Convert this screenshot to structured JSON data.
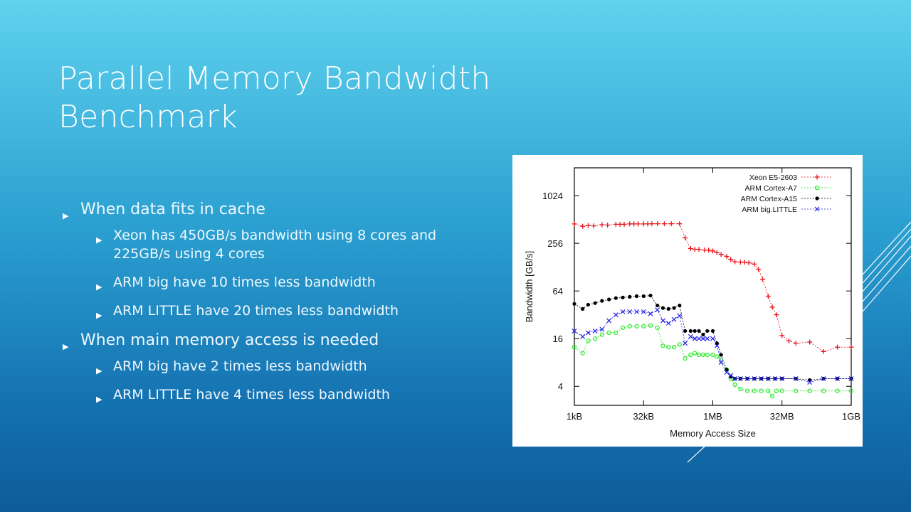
{
  "slide": {
    "title_line1": "Parallel Memory Bandwidth",
    "title_line2": "Benchmark",
    "bullets": [
      {
        "text": "When data fits in cache",
        "sub": [
          "Xeon has 450GB/s bandwidth using 8 cores and 225GB/s using 4 cores",
          "ARM big have 10 times less bandwidth",
          "ARM LITTLE have 20 times less bandwidth"
        ]
      },
      {
        "text": "When main memory access is needed",
        "sub": [
          "ARM big have 2 times less bandwidth",
          "ARM LITTLE have 4 times less bandwidth"
        ]
      }
    ],
    "colors": {
      "bullet_arrow": "#ffffff",
      "text": "#eef8ff"
    }
  },
  "chart_data": {
    "type": "line",
    "xlabel": "Memory Access Size",
    "ylabel": "Bandwidth [GB/s]",
    "x_scale": "log2",
    "y_scale": "log2",
    "xlim_log2": [
      10,
      30
    ],
    "ylim": [
      2.3,
      2300
    ],
    "xticks": [
      {
        "label": "1kB",
        "v": 10
      },
      {
        "label": "32kB",
        "v": 15
      },
      {
        "label": "1MB",
        "v": 20
      },
      {
        "label": "32MB",
        "v": 25
      },
      {
        "label": "1GB",
        "v": 30
      }
    ],
    "yticks": [
      4,
      16,
      64,
      256,
      1024
    ],
    "legend_position": "top-right",
    "series": [
      {
        "name": "Xeon E5-2603",
        "color": "#e8141b",
        "marker": "+",
        "points": [
          [
            10,
            450
          ],
          [
            10.6,
            420
          ],
          [
            11,
            430
          ],
          [
            11.4,
            425
          ],
          [
            12,
            440
          ],
          [
            12.4,
            435
          ],
          [
            13,
            445
          ],
          [
            13.3,
            445
          ],
          [
            13.6,
            445
          ],
          [
            14,
            450
          ],
          [
            14.3,
            450
          ],
          [
            14.6,
            450
          ],
          [
            15,
            450
          ],
          [
            15.3,
            450
          ],
          [
            15.6,
            452
          ],
          [
            16,
            452
          ],
          [
            16.5,
            452
          ],
          [
            17,
            452
          ],
          [
            17.6,
            452
          ],
          [
            18,
            300
          ],
          [
            18.4,
            220
          ],
          [
            18.7,
            215
          ],
          [
            19,
            215
          ],
          [
            19.4,
            210
          ],
          [
            19.7,
            210
          ],
          [
            20,
            205
          ],
          [
            20.3,
            195
          ],
          [
            20.6,
            185
          ],
          [
            21,
            175
          ],
          [
            21.3,
            160
          ],
          [
            21.6,
            150
          ],
          [
            22,
            148
          ],
          [
            22.3,
            148
          ],
          [
            22.6,
            145
          ],
          [
            23,
            140
          ],
          [
            23.3,
            120
          ],
          [
            23.6,
            90
          ],
          [
            24,
            55
          ],
          [
            24.3,
            40
          ],
          [
            24.6,
            32
          ],
          [
            25,
            17.5
          ],
          [
            25.5,
            15
          ],
          [
            26,
            14
          ],
          [
            27,
            14.5
          ],
          [
            28,
            11
          ],
          [
            29,
            12.5
          ],
          [
            30,
            12.5
          ]
        ]
      },
      {
        "name": "ARM Cortex-A7",
        "color": "#1ee81e",
        "marker": "o",
        "points": [
          [
            10,
            12.5
          ],
          [
            10.6,
            10.5
          ],
          [
            11,
            15
          ],
          [
            11.5,
            16
          ],
          [
            12,
            18
          ],
          [
            12.5,
            19
          ],
          [
            13,
            19
          ],
          [
            13.5,
            22
          ],
          [
            14,
            23
          ],
          [
            14.5,
            23
          ],
          [
            15,
            23
          ],
          [
            15.5,
            23.5
          ],
          [
            16,
            22
          ],
          [
            16.4,
            13
          ],
          [
            16.8,
            12.5
          ],
          [
            17.2,
            12.5
          ],
          [
            17.6,
            13.5
          ],
          [
            18,
            9
          ],
          [
            18.4,
            10
          ],
          [
            18.7,
            10.5
          ],
          [
            19,
            10
          ],
          [
            19.3,
            10
          ],
          [
            19.6,
            10
          ],
          [
            20,
            10
          ],
          [
            20.3,
            9.5
          ],
          [
            20.6,
            8.5
          ],
          [
            21,
            6.5
          ],
          [
            21.3,
            5
          ],
          [
            21.6,
            4.2
          ],
          [
            22,
            3.7
          ],
          [
            22.5,
            3.5
          ],
          [
            23,
            3.5
          ],
          [
            23.5,
            3.5
          ],
          [
            24,
            3.5
          ],
          [
            24.3,
            3
          ],
          [
            24.6,
            3.5
          ],
          [
            25,
            3.5
          ],
          [
            26,
            3.5
          ],
          [
            27,
            3.5
          ],
          [
            28,
            3.5
          ],
          [
            29,
            3.5
          ],
          [
            30,
            3.5
          ]
        ]
      },
      {
        "name": "ARM Cortex-A15",
        "color": "#000000",
        "marker": "dot",
        "points": [
          [
            10,
            44
          ],
          [
            10.6,
            38
          ],
          [
            11,
            43
          ],
          [
            11.5,
            45
          ],
          [
            12,
            48
          ],
          [
            12.5,
            50
          ],
          [
            13,
            52
          ],
          [
            13.5,
            53
          ],
          [
            14,
            54
          ],
          [
            14.5,
            55
          ],
          [
            15,
            55
          ],
          [
            15.5,
            56
          ],
          [
            16,
            42
          ],
          [
            16.4,
            39
          ],
          [
            16.8,
            38
          ],
          [
            17.2,
            39
          ],
          [
            17.6,
            42
          ],
          [
            18,
            20
          ],
          [
            18.4,
            20
          ],
          [
            18.7,
            20
          ],
          [
            19,
            20
          ],
          [
            19.3,
            18
          ],
          [
            19.6,
            20
          ],
          [
            20,
            20
          ],
          [
            20.3,
            14
          ],
          [
            20.6,
            10
          ],
          [
            21,
            6.5
          ],
          [
            21.3,
            5.3
          ],
          [
            21.6,
            5
          ],
          [
            22,
            5
          ],
          [
            22.5,
            5
          ],
          [
            23,
            5
          ],
          [
            23.5,
            5
          ],
          [
            24,
            5
          ],
          [
            24.5,
            5
          ],
          [
            25,
            5
          ],
          [
            26,
            5
          ],
          [
            27,
            4.8
          ],
          [
            28,
            5
          ],
          [
            29,
            5
          ],
          [
            30,
            5
          ]
        ]
      },
      {
        "name": "ARM big.LITTLE",
        "color": "#1e1ee8",
        "marker": "x",
        "points": [
          [
            10,
            20
          ],
          [
            10.6,
            17
          ],
          [
            11,
            19
          ],
          [
            11.5,
            20
          ],
          [
            12,
            21
          ],
          [
            12.5,
            27
          ],
          [
            13,
            32
          ],
          [
            13.5,
            35
          ],
          [
            14,
            35
          ],
          [
            14.5,
            35
          ],
          [
            15,
            35
          ],
          [
            15.5,
            33
          ],
          [
            16,
            37
          ],
          [
            16.4,
            27
          ],
          [
            16.8,
            25
          ],
          [
            17.2,
            28
          ],
          [
            17.6,
            31
          ],
          [
            18,
            14
          ],
          [
            18.4,
            17
          ],
          [
            18.7,
            16
          ],
          [
            19,
            16
          ],
          [
            19.3,
            16
          ],
          [
            19.6,
            16
          ],
          [
            20,
            16
          ],
          [
            20.3,
            13
          ],
          [
            20.6,
            8
          ],
          [
            21,
            6
          ],
          [
            21.3,
            5.5
          ],
          [
            21.6,
            5
          ],
          [
            22,
            5
          ],
          [
            22.5,
            5
          ],
          [
            23,
            5
          ],
          [
            23.5,
            5
          ],
          [
            24,
            5
          ],
          [
            24.5,
            5
          ],
          [
            25,
            5
          ],
          [
            26,
            5
          ],
          [
            27,
            4.5
          ],
          [
            28,
            5
          ],
          [
            29,
            5
          ],
          [
            30,
            5
          ]
        ]
      }
    ]
  }
}
